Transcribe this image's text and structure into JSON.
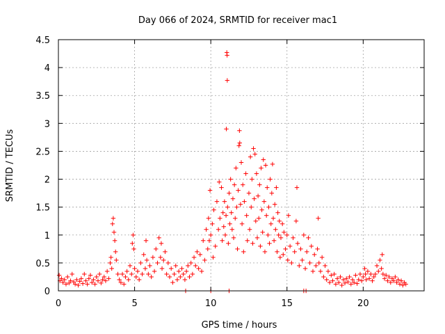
{
  "chart_data": {
    "type": "scatter",
    "title": "Day 066 of 2024, SRMTID for receiver mac1",
    "xlabel": "GPS time / hours",
    "ylabel": "SRMTID / TECUs",
    "xlim": [
      0,
      24
    ],
    "ylim": [
      0,
      4.5
    ],
    "x_ticks": [
      0,
      5,
      10,
      15,
      20
    ],
    "y_ticks": [
      0,
      0.5,
      1,
      1.5,
      2,
      2.5,
      3,
      3.5,
      4,
      4.5
    ],
    "x_tick_labels": [
      "0",
      "5",
      "10",
      "15",
      "20"
    ],
    "y_tick_labels": [
      "0",
      "0.5",
      "1",
      "1.5",
      "2",
      "2.5",
      "3",
      "3.5",
      "4",
      "4.5"
    ],
    "grid": true,
    "marker": "+",
    "series": [
      {
        "name": "SRMTID",
        "color": "#ff0000",
        "points": [
          [
            0.05,
            0.28
          ],
          [
            0.1,
            0.18
          ],
          [
            0.2,
            0.22
          ],
          [
            0.3,
            0.15
          ],
          [
            0.4,
            0.2
          ],
          [
            0.5,
            0.12
          ],
          [
            0.6,
            0.25
          ],
          [
            0.7,
            0.14
          ],
          [
            0.8,
            0.18
          ],
          [
            0.9,
            0.3
          ],
          [
            1.0,
            0.16
          ],
          [
            1.1,
            0.12
          ],
          [
            1.2,
            0.2
          ],
          [
            1.3,
            0.1
          ],
          [
            1.4,
            0.17
          ],
          [
            1.5,
            0.22
          ],
          [
            1.6,
            0.13
          ],
          [
            1.7,
            0.3
          ],
          [
            1.8,
            0.18
          ],
          [
            1.9,
            0.12
          ],
          [
            2.0,
            0.22
          ],
          [
            2.1,
            0.28
          ],
          [
            2.2,
            0.15
          ],
          [
            2.3,
            0.2
          ],
          [
            2.4,
            0.12
          ],
          [
            2.5,
            0.25
          ],
          [
            2.6,
            0.18
          ],
          [
            2.7,
            0.3
          ],
          [
            2.8,
            0.14
          ],
          [
            2.9,
            0.2
          ],
          [
            3.0,
            0.25
          ],
          [
            3.1,
            0.18
          ],
          [
            3.2,
            0.35
          ],
          [
            3.3,
            0.22
          ],
          [
            3.4,
            0.5
          ],
          [
            3.45,
            0.6
          ],
          [
            3.5,
            0.4
          ],
          [
            3.55,
            1.2
          ],
          [
            3.6,
            1.3
          ],
          [
            3.65,
            1.05
          ],
          [
            3.7,
            0.9
          ],
          [
            3.75,
            0.7
          ],
          [
            3.8,
            0.55
          ],
          [
            3.9,
            0.3
          ],
          [
            4.0,
            0.2
          ],
          [
            4.1,
            0.15
          ],
          [
            4.2,
            0.3
          ],
          [
            4.3,
            0.12
          ],
          [
            4.4,
            0.25
          ],
          [
            4.5,
            0.35
          ],
          [
            4.6,
            0.2
          ],
          [
            4.7,
            0.45
          ],
          [
            4.8,
            0.3
          ],
          [
            4.85,
            0.85
          ],
          [
            4.9,
            1.0
          ],
          [
            4.95,
            0.75
          ],
          [
            5.0,
            0.4
          ],
          [
            5.1,
            0.25
          ],
          [
            5.2,
            0.35
          ],
          [
            5.3,
            0.2
          ],
          [
            5.4,
            0.5
          ],
          [
            5.5,
            0.3
          ],
          [
            5.6,
            0.65
          ],
          [
            5.7,
            0.4
          ],
          [
            5.75,
            0.9
          ],
          [
            5.8,
            0.55
          ],
          [
            5.9,
            0.3
          ],
          [
            6.0,
            0.45
          ],
          [
            6.1,
            0.25
          ],
          [
            6.2,
            0.6
          ],
          [
            6.3,
            0.35
          ],
          [
            6.4,
            0.75
          ],
          [
            6.5,
            0.5
          ],
          [
            6.6,
            0.95
          ],
          [
            6.7,
            0.6
          ],
          [
            6.75,
            0.85
          ],
          [
            6.8,
            0.4
          ],
          [
            6.9,
            0.55
          ],
          [
            7.0,
            0.7
          ],
          [
            7.1,
            0.3
          ],
          [
            7.2,
            0.5
          ],
          [
            7.3,
            0.25
          ],
          [
            7.4,
            0.4
          ],
          [
            7.5,
            0.15
          ],
          [
            7.6,
            0.3
          ],
          [
            7.7,
            0.45
          ],
          [
            7.8,
            0.2
          ],
          [
            7.9,
            0.35
          ],
          [
            8.0,
            0.25
          ],
          [
            8.1,
            0.4
          ],
          [
            8.2,
            0.3
          ],
          [
            8.3,
            0.2
          ],
          [
            8.4,
            0.35
          ],
          [
            8.5,
            0.45
          ],
          [
            8.6,
            0.25
          ],
          [
            8.7,
            0.5
          ],
          [
            8.8,
            0.3
          ],
          [
            8.9,
            0.6
          ],
          [
            9.0,
            0.45
          ],
          [
            9.1,
            0.7
          ],
          [
            9.2,
            0.4
          ],
          [
            9.3,
            0.65
          ],
          [
            9.4,
            0.35
          ],
          [
            9.5,
            0.9
          ],
          [
            9.6,
            0.55
          ],
          [
            9.7,
            1.1
          ],
          [
            9.8,
            0.75
          ],
          [
            9.85,
            1.3
          ],
          [
            9.9,
            0.9
          ],
          [
            9.95,
            1.8
          ],
          [
            10.0,
            1.0
          ],
          [
            10.1,
            1.2
          ],
          [
            10.15,
            0.6
          ],
          [
            10.2,
            1.45
          ],
          [
            10.3,
            0.8
          ],
          [
            10.4,
            1.6
          ],
          [
            10.5,
            1.1
          ],
          [
            10.55,
            1.95
          ],
          [
            10.6,
            1.3
          ],
          [
            10.7,
            1.85
          ],
          [
            10.75,
            0.9
          ],
          [
            10.8,
            1.4
          ],
          [
            10.85,
            1.15
          ],
          [
            10.9,
            1.6
          ],
          [
            10.95,
            1.0
          ],
          [
            11.0,
            1.35
          ],
          [
            11.02,
            2.9
          ],
          [
            11.05,
            4.27
          ],
          [
            11.07,
            4.22
          ],
          [
            11.08,
            3.77
          ],
          [
            11.1,
            1.5
          ],
          [
            11.15,
            0.85
          ],
          [
            11.2,
            1.75
          ],
          [
            11.25,
            1.2
          ],
          [
            11.3,
            2.0
          ],
          [
            11.35,
            1.4
          ],
          [
            11.4,
            1.1
          ],
          [
            11.45,
            1.65
          ],
          [
            11.5,
            0.95
          ],
          [
            11.55,
            1.9
          ],
          [
            11.6,
            1.3
          ],
          [
            11.65,
            2.2
          ],
          [
            11.7,
            1.5
          ],
          [
            11.75,
            0.75
          ],
          [
            11.8,
            1.8
          ],
          [
            11.85,
            2.6
          ],
          [
            11.88,
            2.87
          ],
          [
            11.9,
            2.65
          ],
          [
            11.95,
            1.55
          ],
          [
            12.0,
            2.3
          ],
          [
            12.05,
            1.2
          ],
          [
            12.1,
            1.9
          ],
          [
            12.15,
            0.7
          ],
          [
            12.2,
            1.6
          ],
          [
            12.3,
            2.1
          ],
          [
            12.35,
            1.35
          ],
          [
            12.4,
            0.9
          ],
          [
            12.5,
            1.75
          ],
          [
            12.55,
            1.1
          ],
          [
            12.6,
            2.4
          ],
          [
            12.65,
            1.5
          ],
          [
            12.7,
            2.0
          ],
          [
            12.75,
            0.85
          ],
          [
            12.8,
            2.55
          ],
          [
            12.85,
            1.65
          ],
          [
            12.9,
            2.45
          ],
          [
            12.95,
            1.25
          ],
          [
            13.0,
            2.1
          ],
          [
            13.05,
            0.95
          ],
          [
            13.1,
            1.7
          ],
          [
            13.15,
            1.3
          ],
          [
            13.2,
            1.9
          ],
          [
            13.25,
            0.8
          ],
          [
            13.3,
            2.2
          ],
          [
            13.35,
            1.45
          ],
          [
            13.4,
            1.05
          ],
          [
            13.45,
            2.35
          ],
          [
            13.5,
            1.6
          ],
          [
            13.55,
            0.7
          ],
          [
            13.6,
            2.25
          ],
          [
            13.65,
            1.35
          ],
          [
            13.7,
            1.85
          ],
          [
            13.75,
            1.0
          ],
          [
            13.8,
            1.5
          ],
          [
            13.85,
            0.85
          ],
          [
            13.9,
            2.0
          ],
          [
            13.95,
            1.2
          ],
          [
            14.0,
            1.75
          ],
          [
            14.05,
            2.27
          ],
          [
            14.1,
            1.3
          ],
          [
            14.15,
            0.9
          ],
          [
            14.2,
            1.55
          ],
          [
            14.25,
            1.1
          ],
          [
            14.3,
            1.85
          ],
          [
            14.35,
            0.7
          ],
          [
            14.4,
            1.4
          ],
          [
            14.45,
            1.0
          ],
          [
            14.5,
            1.25
          ],
          [
            14.55,
            0.6
          ],
          [
            14.6,
            0.95
          ],
          [
            14.7,
            1.2
          ],
          [
            14.75,
            0.65
          ],
          [
            14.8,
            1.05
          ],
          [
            14.9,
            0.75
          ],
          [
            15.0,
            1.0
          ],
          [
            15.05,
            0.55
          ],
          [
            15.1,
            1.35
          ],
          [
            15.2,
            0.8
          ],
          [
            15.3,
            0.5
          ],
          [
            15.4,
            0.95
          ],
          [
            15.5,
            0.7
          ],
          [
            15.6,
            1.25
          ],
          [
            15.65,
            1.85
          ],
          [
            15.7,
            0.85
          ],
          [
            15.8,
            0.45
          ],
          [
            15.9,
            0.75
          ],
          [
            16.0,
            0.55
          ],
          [
            16.1,
            1.0
          ],
          [
            16.2,
            0.4
          ],
          [
            16.3,
            0.7
          ],
          [
            16.4,
            0.95
          ],
          [
            16.5,
            0.5
          ],
          [
            16.6,
            0.8
          ],
          [
            16.7,
            0.35
          ],
          [
            16.8,
            0.65
          ],
          [
            16.9,
            0.45
          ],
          [
            17.0,
            0.75
          ],
          [
            17.05,
            1.3
          ],
          [
            17.1,
            0.5
          ],
          [
            17.2,
            0.35
          ],
          [
            17.3,
            0.6
          ],
          [
            17.4,
            0.25
          ],
          [
            17.5,
            0.45
          ],
          [
            17.6,
            0.2
          ],
          [
            17.7,
            0.35
          ],
          [
            17.8,
            0.15
          ],
          [
            17.9,
            0.28
          ],
          [
            18.0,
            0.18
          ],
          [
            18.1,
            0.3
          ],
          [
            18.2,
            0.12
          ],
          [
            18.3,
            0.22
          ],
          [
            18.4,
            0.15
          ],
          [
            18.5,
            0.25
          ],
          [
            18.6,
            0.1
          ],
          [
            18.7,
            0.2
          ],
          [
            18.8,
            0.14
          ],
          [
            18.9,
            0.22
          ],
          [
            19.0,
            0.16
          ],
          [
            19.1,
            0.25
          ],
          [
            19.2,
            0.12
          ],
          [
            19.3,
            0.2
          ],
          [
            19.4,
            0.15
          ],
          [
            19.5,
            0.28
          ],
          [
            19.6,
            0.13
          ],
          [
            19.7,
            0.2
          ],
          [
            19.8,
            0.3
          ],
          [
            19.9,
            0.18
          ],
          [
            20.0,
            0.25
          ],
          [
            20.1,
            0.4
          ],
          [
            20.15,
            0.3
          ],
          [
            20.2,
            0.2
          ],
          [
            20.3,
            0.35
          ],
          [
            20.4,
            0.22
          ],
          [
            20.5,
            0.3
          ],
          [
            20.6,
            0.18
          ],
          [
            20.7,
            0.25
          ],
          [
            20.8,
            0.3
          ],
          [
            20.9,
            0.45
          ],
          [
            21.0,
            0.35
          ],
          [
            21.1,
            0.55
          ],
          [
            21.2,
            0.4
          ],
          [
            21.25,
            0.65
          ],
          [
            21.3,
            0.3
          ],
          [
            21.4,
            0.22
          ],
          [
            21.5,
            0.28
          ],
          [
            21.6,
            0.18
          ],
          [
            21.7,
            0.25
          ],
          [
            21.8,
            0.15
          ],
          [
            21.9,
            0.22
          ],
          [
            22.0,
            0.18
          ],
          [
            22.1,
            0.25
          ],
          [
            22.2,
            0.15
          ],
          [
            22.3,
            0.2
          ],
          [
            22.4,
            0.12
          ],
          [
            22.5,
            0.18
          ],
          [
            22.6,
            0.1
          ],
          [
            22.7,
            0.15
          ],
          [
            22.8,
            0.12
          ],
          [
            8.35,
            0.0
          ],
          [
            10.0,
            0.0
          ],
          [
            11.2,
            0.0
          ],
          [
            16.1,
            0.0
          ],
          [
            16.25,
            0.0
          ]
        ]
      }
    ]
  }
}
